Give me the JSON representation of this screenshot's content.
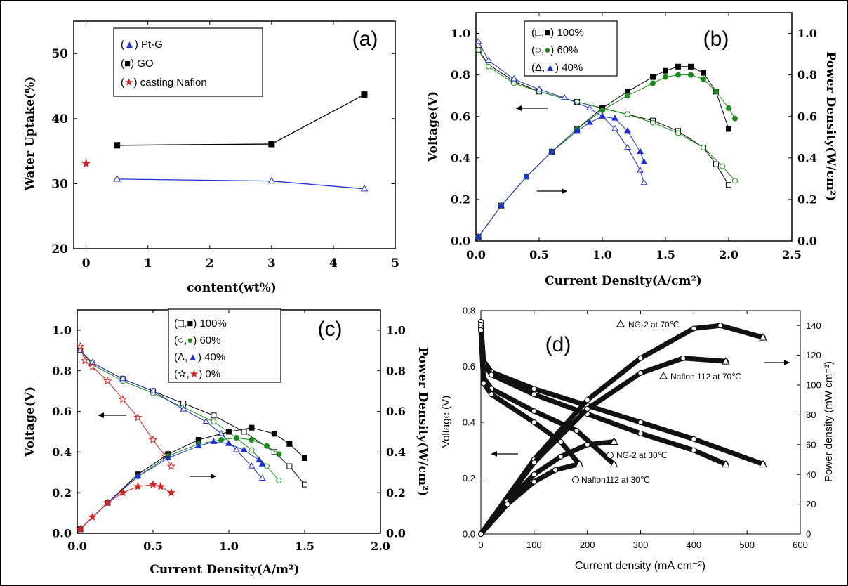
{
  "figure": {
    "border_color": "#000000"
  },
  "colors": {
    "black": "#000000",
    "blue": "#1f2fd8",
    "green": "#1a8a1a",
    "red": "#d81e1e"
  },
  "chart_data": [
    {
      "id": "a",
      "panel_label": "(a)",
      "type": "line",
      "xlabel": "content(wt%)",
      "ylabel": "Water Uptake(%)",
      "xlim": [
        -0.2,
        5
      ],
      "ylim": [
        20,
        55
      ],
      "xticks": [
        0,
        1,
        2,
        3,
        4,
        5
      ],
      "yticks": [
        20,
        30,
        40,
        50
      ],
      "grid": false,
      "legend_position": "top-left",
      "legend": [
        {
          "open": "(",
          "sym": "▲",
          "text": ") Pt-G",
          "color": "blue"
        },
        {
          "open": "(",
          "sym": "■",
          "text": ") GO",
          "color": "black"
        },
        {
          "open": "(",
          "sym": "★",
          "text": ") casting Nafion",
          "color": "red"
        }
      ],
      "series": [
        {
          "name": "Pt-G",
          "color": "blue",
          "marker": "triangle",
          "x": [
            0.5,
            3,
            4.5
          ],
          "y": [
            30.7,
            30.4,
            29.2
          ]
        },
        {
          "name": "GO",
          "color": "black",
          "marker": "square",
          "x": [
            0.5,
            3,
            4.5
          ],
          "y": [
            35.9,
            36.1,
            43.7
          ]
        },
        {
          "name": "casting Nafion",
          "color": "red",
          "marker": "star",
          "x": [
            0
          ],
          "y": [
            33.1
          ],
          "line": false
        }
      ]
    },
    {
      "id": "b",
      "panel_label": "(b)",
      "type": "line",
      "xlabel": "Current Density(A/cm²)",
      "ylabel": "Voltage(V)",
      "y2label": "Power Density(W/cm²)",
      "xlim": [
        0,
        2.5
      ],
      "ylim": [
        0,
        1.1
      ],
      "y2lim": [
        0,
        1.1
      ],
      "xticks": [
        0.0,
        0.5,
        1.0,
        1.5,
        2.0,
        2.5
      ],
      "yticks": [
        0.0,
        0.2,
        0.4,
        0.6,
        0.8,
        1.0
      ],
      "grid": false,
      "legend_position": "top-center",
      "legend": [
        {
          "open": "(□,",
          "sym": "■",
          "text": ") 100%",
          "color": "black"
        },
        {
          "open": "(○,",
          "sym": "●",
          "text": ") 60%",
          "color": "green"
        },
        {
          "open": "(Δ,",
          "sym": "▲",
          "text": ") 40%",
          "color": "blue"
        }
      ],
      "series": [
        {
          "name": "100% voltage",
          "color": "black",
          "marker": "square",
          "filled": false,
          "x": [
            0.02,
            0.1,
            0.3,
            0.5,
            0.8,
            1.0,
            1.2,
            1.4,
            1.6,
            1.8,
            1.9,
            2.0
          ],
          "y": [
            0.92,
            0.85,
            0.77,
            0.72,
            0.67,
            0.64,
            0.61,
            0.58,
            0.53,
            0.45,
            0.37,
            0.27
          ]
        },
        {
          "name": "60% voltage",
          "color": "green",
          "marker": "circle",
          "filled": false,
          "x": [
            0.02,
            0.1,
            0.3,
            0.5,
            0.8,
            1.0,
            1.2,
            1.4,
            1.6,
            1.8,
            1.95,
            2.05
          ],
          "y": [
            0.92,
            0.84,
            0.76,
            0.72,
            0.67,
            0.64,
            0.61,
            0.57,
            0.52,
            0.45,
            0.36,
            0.29
          ]
        },
        {
          "name": "40% voltage",
          "color": "blue",
          "marker": "triangle",
          "filled": false,
          "x": [
            0.02,
            0.1,
            0.3,
            0.5,
            0.7,
            0.9,
            1.0,
            1.1,
            1.2,
            1.3,
            1.33
          ],
          "y": [
            0.96,
            0.87,
            0.78,
            0.73,
            0.69,
            0.64,
            0.6,
            0.54,
            0.45,
            0.34,
            0.28
          ]
        },
        {
          "name": "100% power",
          "color": "black",
          "marker": "square",
          "filled": true,
          "x": [
            0.02,
            0.2,
            0.4,
            0.6,
            0.8,
            1.0,
            1.2,
            1.4,
            1.5,
            1.6,
            1.7,
            1.8,
            1.9,
            2.0
          ],
          "y": [
            0.02,
            0.17,
            0.31,
            0.43,
            0.54,
            0.64,
            0.72,
            0.79,
            0.82,
            0.84,
            0.84,
            0.81,
            0.72,
            0.54
          ]
        },
        {
          "name": "60% power",
          "color": "green",
          "marker": "circle",
          "filled": true,
          "x": [
            0.02,
            0.2,
            0.4,
            0.6,
            0.8,
            1.0,
            1.2,
            1.4,
            1.5,
            1.6,
            1.7,
            1.8,
            1.9,
            2.0,
            2.05
          ],
          "y": [
            0.02,
            0.17,
            0.31,
            0.43,
            0.54,
            0.63,
            0.7,
            0.76,
            0.79,
            0.8,
            0.8,
            0.78,
            0.72,
            0.64,
            0.59
          ]
        },
        {
          "name": "40% power",
          "color": "blue",
          "marker": "triangle",
          "filled": true,
          "x": [
            0.02,
            0.2,
            0.4,
            0.6,
            0.8,
            0.9,
            1.0,
            1.1,
            1.2,
            1.3,
            1.33
          ],
          "y": [
            0.02,
            0.17,
            0.31,
            0.43,
            0.53,
            0.57,
            0.6,
            0.59,
            0.53,
            0.43,
            0.38
          ]
        }
      ]
    },
    {
      "id": "c",
      "panel_label": "(c)",
      "type": "line",
      "xlabel": "Current Density(A/m²)",
      "ylabel": "Voltage(V)",
      "y2label": "Power Density(W/cm²)",
      "xlim": [
        0,
        2.0
      ],
      "ylim": [
        0,
        1.1
      ],
      "y2lim": [
        0,
        1.1
      ],
      "xticks": [
        0.0,
        0.5,
        1.0,
        1.5,
        2.0
      ],
      "yticks": [
        0.0,
        0.2,
        0.4,
        0.6,
        0.8,
        1.0
      ],
      "grid": false,
      "legend_position": "top-center",
      "legend": [
        {
          "open": "(□,",
          "sym": "■",
          "text": ") 100%",
          "color": "black"
        },
        {
          "open": "(○,",
          "sym": "●",
          "text": ") 60%",
          "color": "green"
        },
        {
          "open": "(Δ,",
          "sym": "▲",
          "text": ") 40%",
          "color": "blue"
        },
        {
          "open": "(✫,",
          "sym": "★",
          "text": ") 0%",
          "color": "red"
        }
      ],
      "series": [
        {
          "name": "100% voltage",
          "color": "black",
          "marker": "square",
          "filled": false,
          "x": [
            0.02,
            0.1,
            0.3,
            0.5,
            0.7,
            0.9,
            1.1,
            1.3,
            1.4,
            1.5
          ],
          "y": [
            0.9,
            0.84,
            0.76,
            0.7,
            0.64,
            0.58,
            0.5,
            0.4,
            0.33,
            0.24
          ]
        },
        {
          "name": "60% voltage",
          "color": "green",
          "marker": "circle",
          "filled": false,
          "x": [
            0.02,
            0.1,
            0.3,
            0.5,
            0.7,
            0.9,
            1.05,
            1.15,
            1.25,
            1.33
          ],
          "y": [
            0.9,
            0.83,
            0.75,
            0.69,
            0.62,
            0.55,
            0.47,
            0.41,
            0.33,
            0.26
          ]
        },
        {
          "name": "40% voltage",
          "color": "blue",
          "marker": "triangle",
          "filled": false,
          "x": [
            0.02,
            0.1,
            0.3,
            0.5,
            0.7,
            0.85,
            0.95,
            1.05,
            1.15,
            1.22
          ],
          "y": [
            0.9,
            0.84,
            0.76,
            0.7,
            0.61,
            0.55,
            0.49,
            0.41,
            0.33,
            0.27
          ]
        },
        {
          "name": "0% voltage",
          "color": "red",
          "marker": "star",
          "filled": false,
          "x": [
            0.02,
            0.05,
            0.1,
            0.2,
            0.3,
            0.4,
            0.5,
            0.58,
            0.62
          ],
          "y": [
            0.92,
            0.85,
            0.82,
            0.75,
            0.66,
            0.57,
            0.46,
            0.38,
            0.33
          ]
        },
        {
          "name": "100% power",
          "color": "black",
          "marker": "square",
          "filled": true,
          "x": [
            0.02,
            0.2,
            0.4,
            0.6,
            0.8,
            1.0,
            1.15,
            1.3,
            1.4,
            1.5
          ],
          "y": [
            0.02,
            0.15,
            0.29,
            0.39,
            0.46,
            0.5,
            0.52,
            0.49,
            0.44,
            0.37
          ]
        },
        {
          "name": "60% power",
          "color": "green",
          "marker": "circle",
          "filled": true,
          "x": [
            0.02,
            0.2,
            0.4,
            0.6,
            0.8,
            0.95,
            1.05,
            1.15,
            1.25,
            1.33
          ],
          "y": [
            0.02,
            0.15,
            0.28,
            0.38,
            0.44,
            0.46,
            0.47,
            0.46,
            0.43,
            0.39
          ]
        },
        {
          "name": "40% power",
          "color": "blue",
          "marker": "triangle",
          "filled": true,
          "x": [
            0.02,
            0.2,
            0.4,
            0.6,
            0.8,
            0.9,
            1.0,
            1.1,
            1.2,
            1.22
          ],
          "y": [
            0.02,
            0.15,
            0.28,
            0.37,
            0.43,
            0.45,
            0.44,
            0.41,
            0.36,
            0.34
          ]
        },
        {
          "name": "0% power",
          "color": "red",
          "marker": "star",
          "filled": true,
          "x": [
            0.02,
            0.1,
            0.2,
            0.3,
            0.4,
            0.5,
            0.55,
            0.62
          ],
          "y": [
            0.02,
            0.08,
            0.15,
            0.2,
            0.23,
            0.24,
            0.23,
            0.2
          ]
        }
      ]
    },
    {
      "id": "d",
      "panel_label": "(d)",
      "type": "line",
      "xlabel": "Current density (mA cm⁻²)",
      "ylabel": "Voltage (V)",
      "y2label": "Power density (mW cm⁻²)",
      "xlim": [
        0,
        600
      ],
      "ylim": [
        0,
        0.8
      ],
      "y2lim": [
        0,
        150
      ],
      "xticks": [
        0,
        100,
        200,
        300,
        400,
        500,
        600
      ],
      "yticks": [
        0.0,
        0.2,
        0.4,
        0.6,
        0.8
      ],
      "y2ticks": [
        0,
        20,
        40,
        60,
        80,
        100,
        120,
        140
      ],
      "grid": false,
      "annotations": [
        "NG-2 at 70℃",
        "Nafion 112 at 70℃",
        "NG-2 at 30℃",
        "Nafion112 at 30℃"
      ],
      "series": [
        {
          "name": "NG-2 at 70℃",
          "axis": "left",
          "x": [
            0,
            5,
            20,
            100,
            200,
            300,
            400,
            530
          ],
          "y": [
            0.76,
            0.62,
            0.58,
            0.52,
            0.46,
            0.4,
            0.34,
            0.25
          ]
        },
        {
          "name": "Nafion 112 at 70℃",
          "axis": "left",
          "x": [
            0,
            5,
            20,
            100,
            200,
            300,
            400,
            460
          ],
          "y": [
            0.75,
            0.61,
            0.57,
            0.5,
            0.43,
            0.36,
            0.3,
            0.25
          ]
        },
        {
          "name": "NG-2 at 30℃",
          "axis": "left",
          "x": [
            0,
            5,
            20,
            100,
            180,
            250
          ],
          "y": [
            0.74,
            0.56,
            0.52,
            0.44,
            0.37,
            0.25
          ]
        },
        {
          "name": "Nafion112 at 30℃",
          "axis": "left",
          "x": [
            0,
            5,
            20,
            100,
            150,
            185
          ],
          "y": [
            0.73,
            0.54,
            0.5,
            0.4,
            0.33,
            0.25
          ]
        },
        {
          "name": "NG-2 at 70℃ power",
          "axis": "right",
          "x": [
            0,
            100,
            200,
            300,
            400,
            450,
            530
          ],
          "y": [
            0,
            50,
            90,
            118,
            138,
            140,
            132
          ]
        },
        {
          "name": "Nafion 112 at 70℃ power",
          "axis": "right",
          "x": [
            0,
            100,
            200,
            300,
            380,
            460
          ],
          "y": [
            0,
            48,
            84,
            108,
            118,
            116
          ]
        },
        {
          "name": "NG-2 at 30℃ power",
          "axis": "right",
          "x": [
            0,
            50,
            100,
            150,
            200,
            250
          ],
          "y": [
            0,
            22,
            40,
            52,
            60,
            62
          ]
        },
        {
          "name": "Nafion112 at 30℃ power",
          "axis": "right",
          "x": [
            0,
            50,
            100,
            140,
            185
          ],
          "y": [
            0,
            20,
            35,
            43,
            47
          ]
        }
      ]
    }
  ]
}
